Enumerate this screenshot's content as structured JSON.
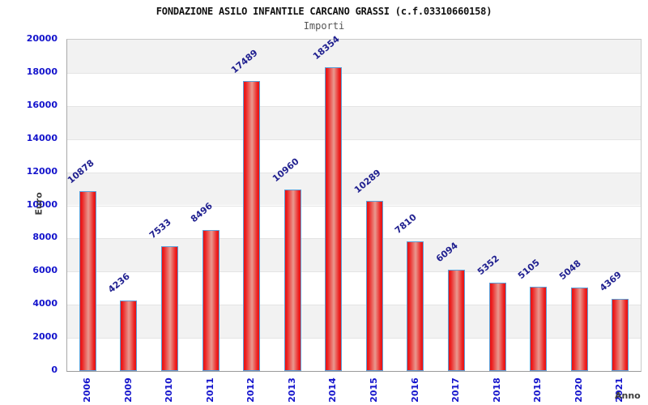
{
  "chart_data": {
    "type": "bar",
    "title": "FONDAZIONE ASILO INFANTILE CARCANO GRASSI (c.f.03310660158)",
    "subtitle": "Importi",
    "xlabel": "Anno",
    "ylabel": "Euro",
    "categories": [
      "2006",
      "2009",
      "2010",
      "2011",
      "2012",
      "2013",
      "2014",
      "2015",
      "2016",
      "2017",
      "2018",
      "2019",
      "2020",
      "2021"
    ],
    "values": [
      10878,
      4236,
      7533,
      8496,
      17489,
      10960,
      18354,
      10289,
      7810,
      6094,
      5352,
      5105,
      5048,
      4369
    ],
    "ylim": [
      0,
      20000
    ],
    "ytick_step": 2000,
    "grid": "horizontal-alternating-bands",
    "legend": "none",
    "bar_label_rotation_deg": -40,
    "x_tick_rotation_deg": -90,
    "colors": {
      "band_gray": "#f2f2f2",
      "band_white": "#ffffff",
      "gridline": "#e4e4e4",
      "bar_fill_edge": "#e81212",
      "bar_fill_highlight": "#e9998f",
      "bar_border": "#5b9fd8",
      "tick_label": "#1313cc",
      "value_label": "#1f1f8f",
      "axis_title": "#3d3d3d",
      "title": "#111111",
      "subtitle": "#555555"
    }
  }
}
